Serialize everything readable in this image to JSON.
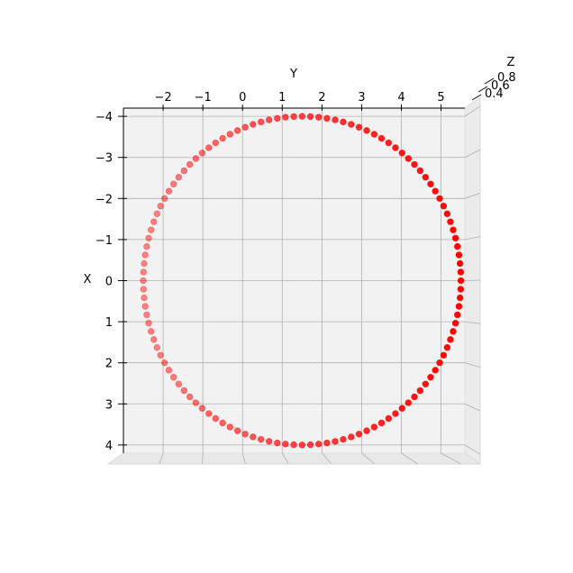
{
  "chart_data": {
    "type": "scatter",
    "projection": "3d",
    "title": "",
    "xlabel": "X",
    "ylabel": "Y",
    "zlabel": "Z",
    "grid": true,
    "x_ticks": [
      "−4",
      "−3",
      "−2",
      "−1",
      "0",
      "1",
      "2",
      "3",
      "4"
    ],
    "y_ticks": [
      "−2",
      "−1",
      "0",
      "1",
      "2",
      "3",
      "4",
      "5"
    ],
    "z_ticks": [
      "0.4",
      "0.6",
      "0.8"
    ],
    "xlim": [
      -4.2,
      4.2
    ],
    "ylim": [
      -3.0,
      5.6
    ],
    "marker_color": "#ff0000",
    "shape": "circle",
    "center": {
      "x": 0,
      "y": 1.5
    },
    "radius": 4.0,
    "point_count": 120,
    "series": [
      {
        "points_description": "x = 4·sin(t), y = 1.5 + 4·cos(t), z ≈ 0.6, t in [0, 2π)"
      }
    ]
  }
}
